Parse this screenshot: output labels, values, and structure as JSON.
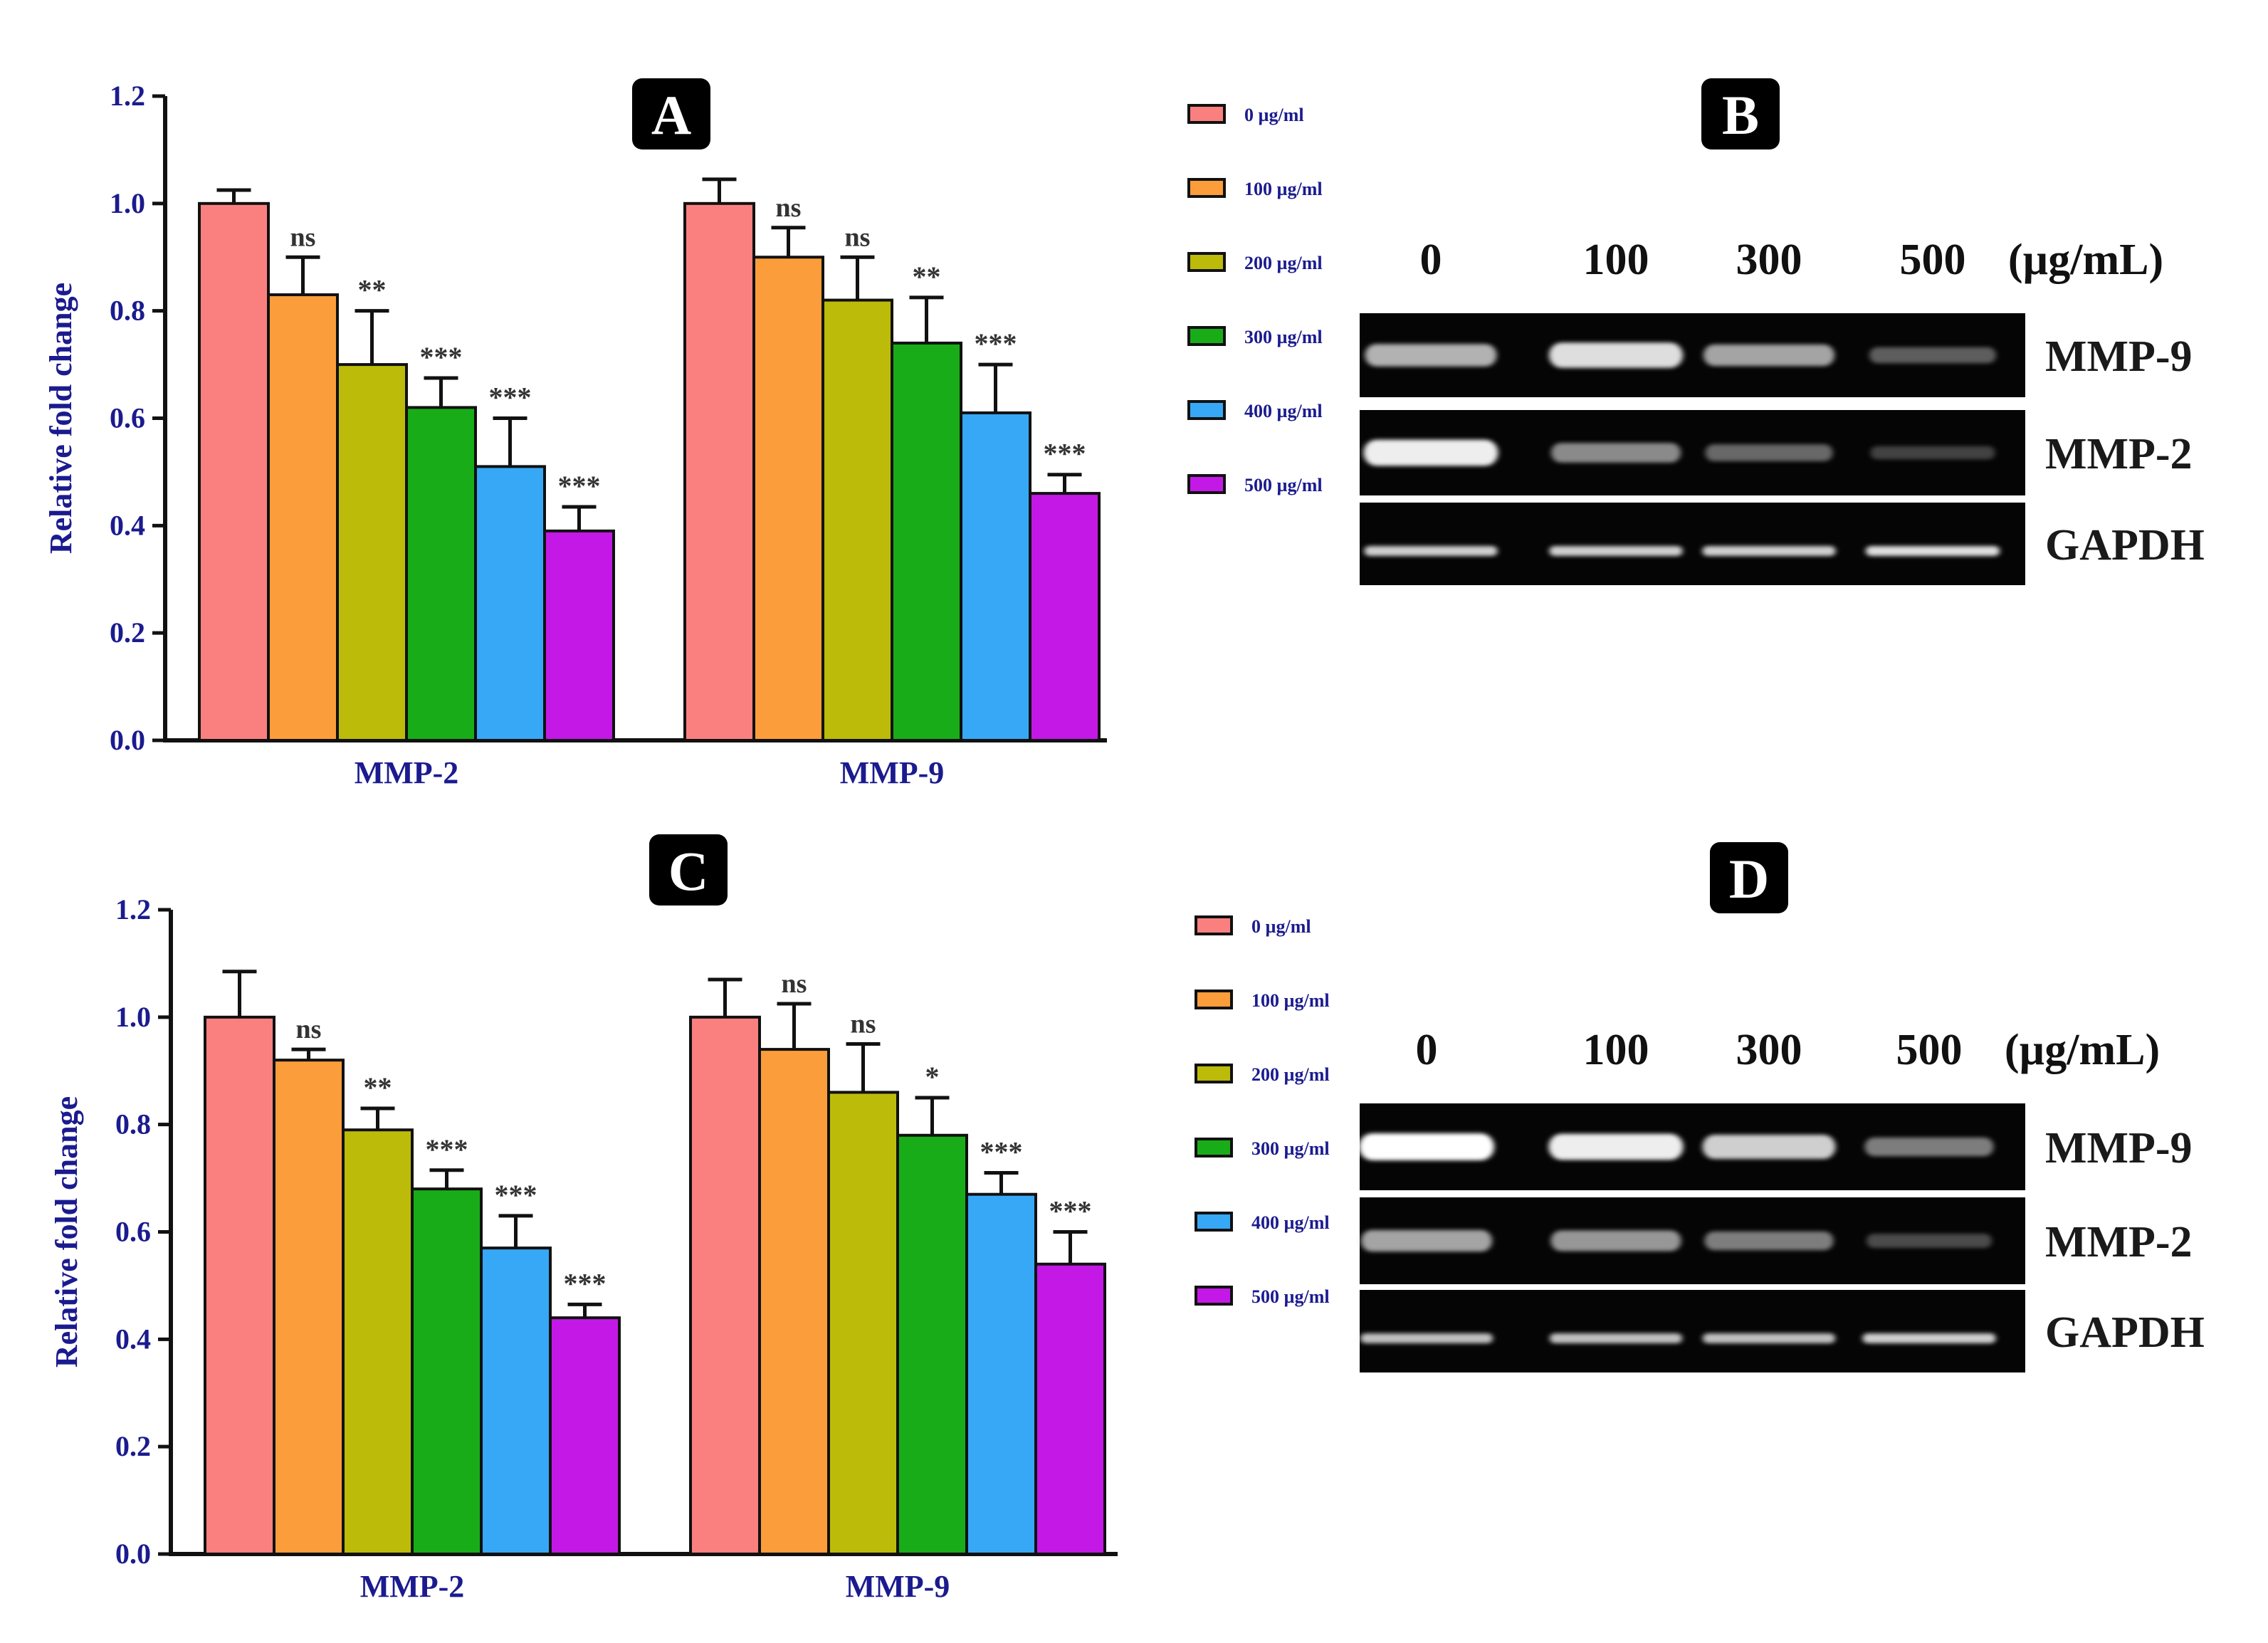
{
  "panels": {
    "A": {
      "letter": "A"
    },
    "B": {
      "letter": "B"
    },
    "C": {
      "letter": "C"
    },
    "D": {
      "letter": "D"
    }
  },
  "legend_items": [
    {
      "label": "0 µg/ml",
      "color": "#fa8080"
    },
    {
      "label": "100 µg/ml",
      "color": "#fb9d3b"
    },
    {
      "label": "200 µg/ml",
      "color": "#bcbb09"
    },
    {
      "label": "300 µg/ml",
      "color": "#18ad18"
    },
    {
      "label": "400 µg/ml",
      "color": "#36a8f6"
    },
    {
      "label": "500 µg/ml",
      "color": "#c419e6"
    }
  ],
  "chart_data": [
    {
      "panel": "A",
      "type": "bar",
      "ylabel": "Relative fold change",
      "ylim": [
        0,
        1.2
      ],
      "yticks": [
        "0.0",
        "0.2",
        "0.4",
        "0.6",
        "0.8",
        "1.0",
        "1.2"
      ],
      "categories": [
        "MMP-2",
        "MMP-9"
      ],
      "series": [
        {
          "name": "0 µg/ml",
          "values": [
            1.0,
            1.0
          ],
          "errors": [
            0.025,
            0.045
          ],
          "sig": [
            "",
            ""
          ]
        },
        {
          "name": "100 µg/ml",
          "values": [
            0.83,
            0.9
          ],
          "errors": [
            0.07,
            0.055
          ],
          "sig": [
            "ns",
            "ns"
          ]
        },
        {
          "name": "200 µg/ml",
          "values": [
            0.7,
            0.82
          ],
          "errors": [
            0.1,
            0.08
          ],
          "sig": [
            "**",
            "ns"
          ]
        },
        {
          "name": "300 µg/ml",
          "values": [
            0.62,
            0.74
          ],
          "errors": [
            0.055,
            0.085
          ],
          "sig": [
            "***",
            "**"
          ]
        },
        {
          "name": "400 µg/ml",
          "values": [
            0.51,
            0.61
          ],
          "errors": [
            0.09,
            0.09
          ],
          "sig": [
            "***",
            "***"
          ]
        },
        {
          "name": "500 µg/ml",
          "values": [
            0.39,
            0.46
          ],
          "errors": [
            0.045,
            0.035
          ],
          "sig": [
            "***",
            "***"
          ]
        }
      ]
    },
    {
      "panel": "C",
      "type": "bar",
      "ylabel": "Relative fold change",
      "ylim": [
        0,
        1.2
      ],
      "yticks": [
        "0.0",
        "0.2",
        "0.4",
        "0.6",
        "0.8",
        "1.0",
        "1.2"
      ],
      "categories": [
        "MMP-2",
        "MMP-9"
      ],
      "series": [
        {
          "name": "0 µg/ml",
          "values": [
            1.0,
            1.0
          ],
          "errors": [
            0.085,
            0.07
          ],
          "sig": [
            "",
            ""
          ]
        },
        {
          "name": "100 µg/ml",
          "values": [
            0.92,
            0.94
          ],
          "errors": [
            0.02,
            0.085
          ],
          "sig": [
            "ns",
            "ns"
          ]
        },
        {
          "name": "200 µg/ml",
          "values": [
            0.79,
            0.86
          ],
          "errors": [
            0.04,
            0.09
          ],
          "sig": [
            "**",
            "ns"
          ]
        },
        {
          "name": "300 µg/ml",
          "values": [
            0.68,
            0.78
          ],
          "errors": [
            0.035,
            0.07
          ],
          "sig": [
            "***",
            "*"
          ]
        },
        {
          "name": "400 µg/ml",
          "values": [
            0.57,
            0.67
          ],
          "errors": [
            0.06,
            0.04
          ],
          "sig": [
            "***",
            "***"
          ]
        },
        {
          "name": "500 µg/ml",
          "values": [
            0.44,
            0.54
          ],
          "errors": [
            0.025,
            0.06
          ],
          "sig": [
            "***",
            "***"
          ]
        }
      ]
    }
  ],
  "blots": [
    {
      "panel": "B",
      "lane_labels": [
        "0",
        "100",
        "300",
        "500"
      ],
      "unit_label": "(µg/mL)",
      "rows": [
        {
          "label": "MMP-9",
          "band_intensity": [
            0.75,
            0.9,
            0.7,
            0.4
          ]
        },
        {
          "label": "MMP-2",
          "band_intensity": [
            0.95,
            0.6,
            0.45,
            0.25
          ]
        },
        {
          "label": "GAPDH",
          "band_intensity": [
            0.85,
            0.85,
            0.85,
            0.9
          ]
        }
      ]
    },
    {
      "panel": "D",
      "lane_labels": [
        "0",
        "100",
        "300",
        "500"
      ],
      "unit_label": "(µg/mL)",
      "rows": [
        {
          "label": "MMP-9",
          "band_intensity": [
            1.0,
            0.95,
            0.85,
            0.55
          ]
        },
        {
          "label": "MMP-2",
          "band_intensity": [
            0.7,
            0.65,
            0.55,
            0.3
          ]
        },
        {
          "label": "GAPDH",
          "band_intensity": [
            0.8,
            0.8,
            0.8,
            0.85
          ]
        }
      ]
    }
  ]
}
